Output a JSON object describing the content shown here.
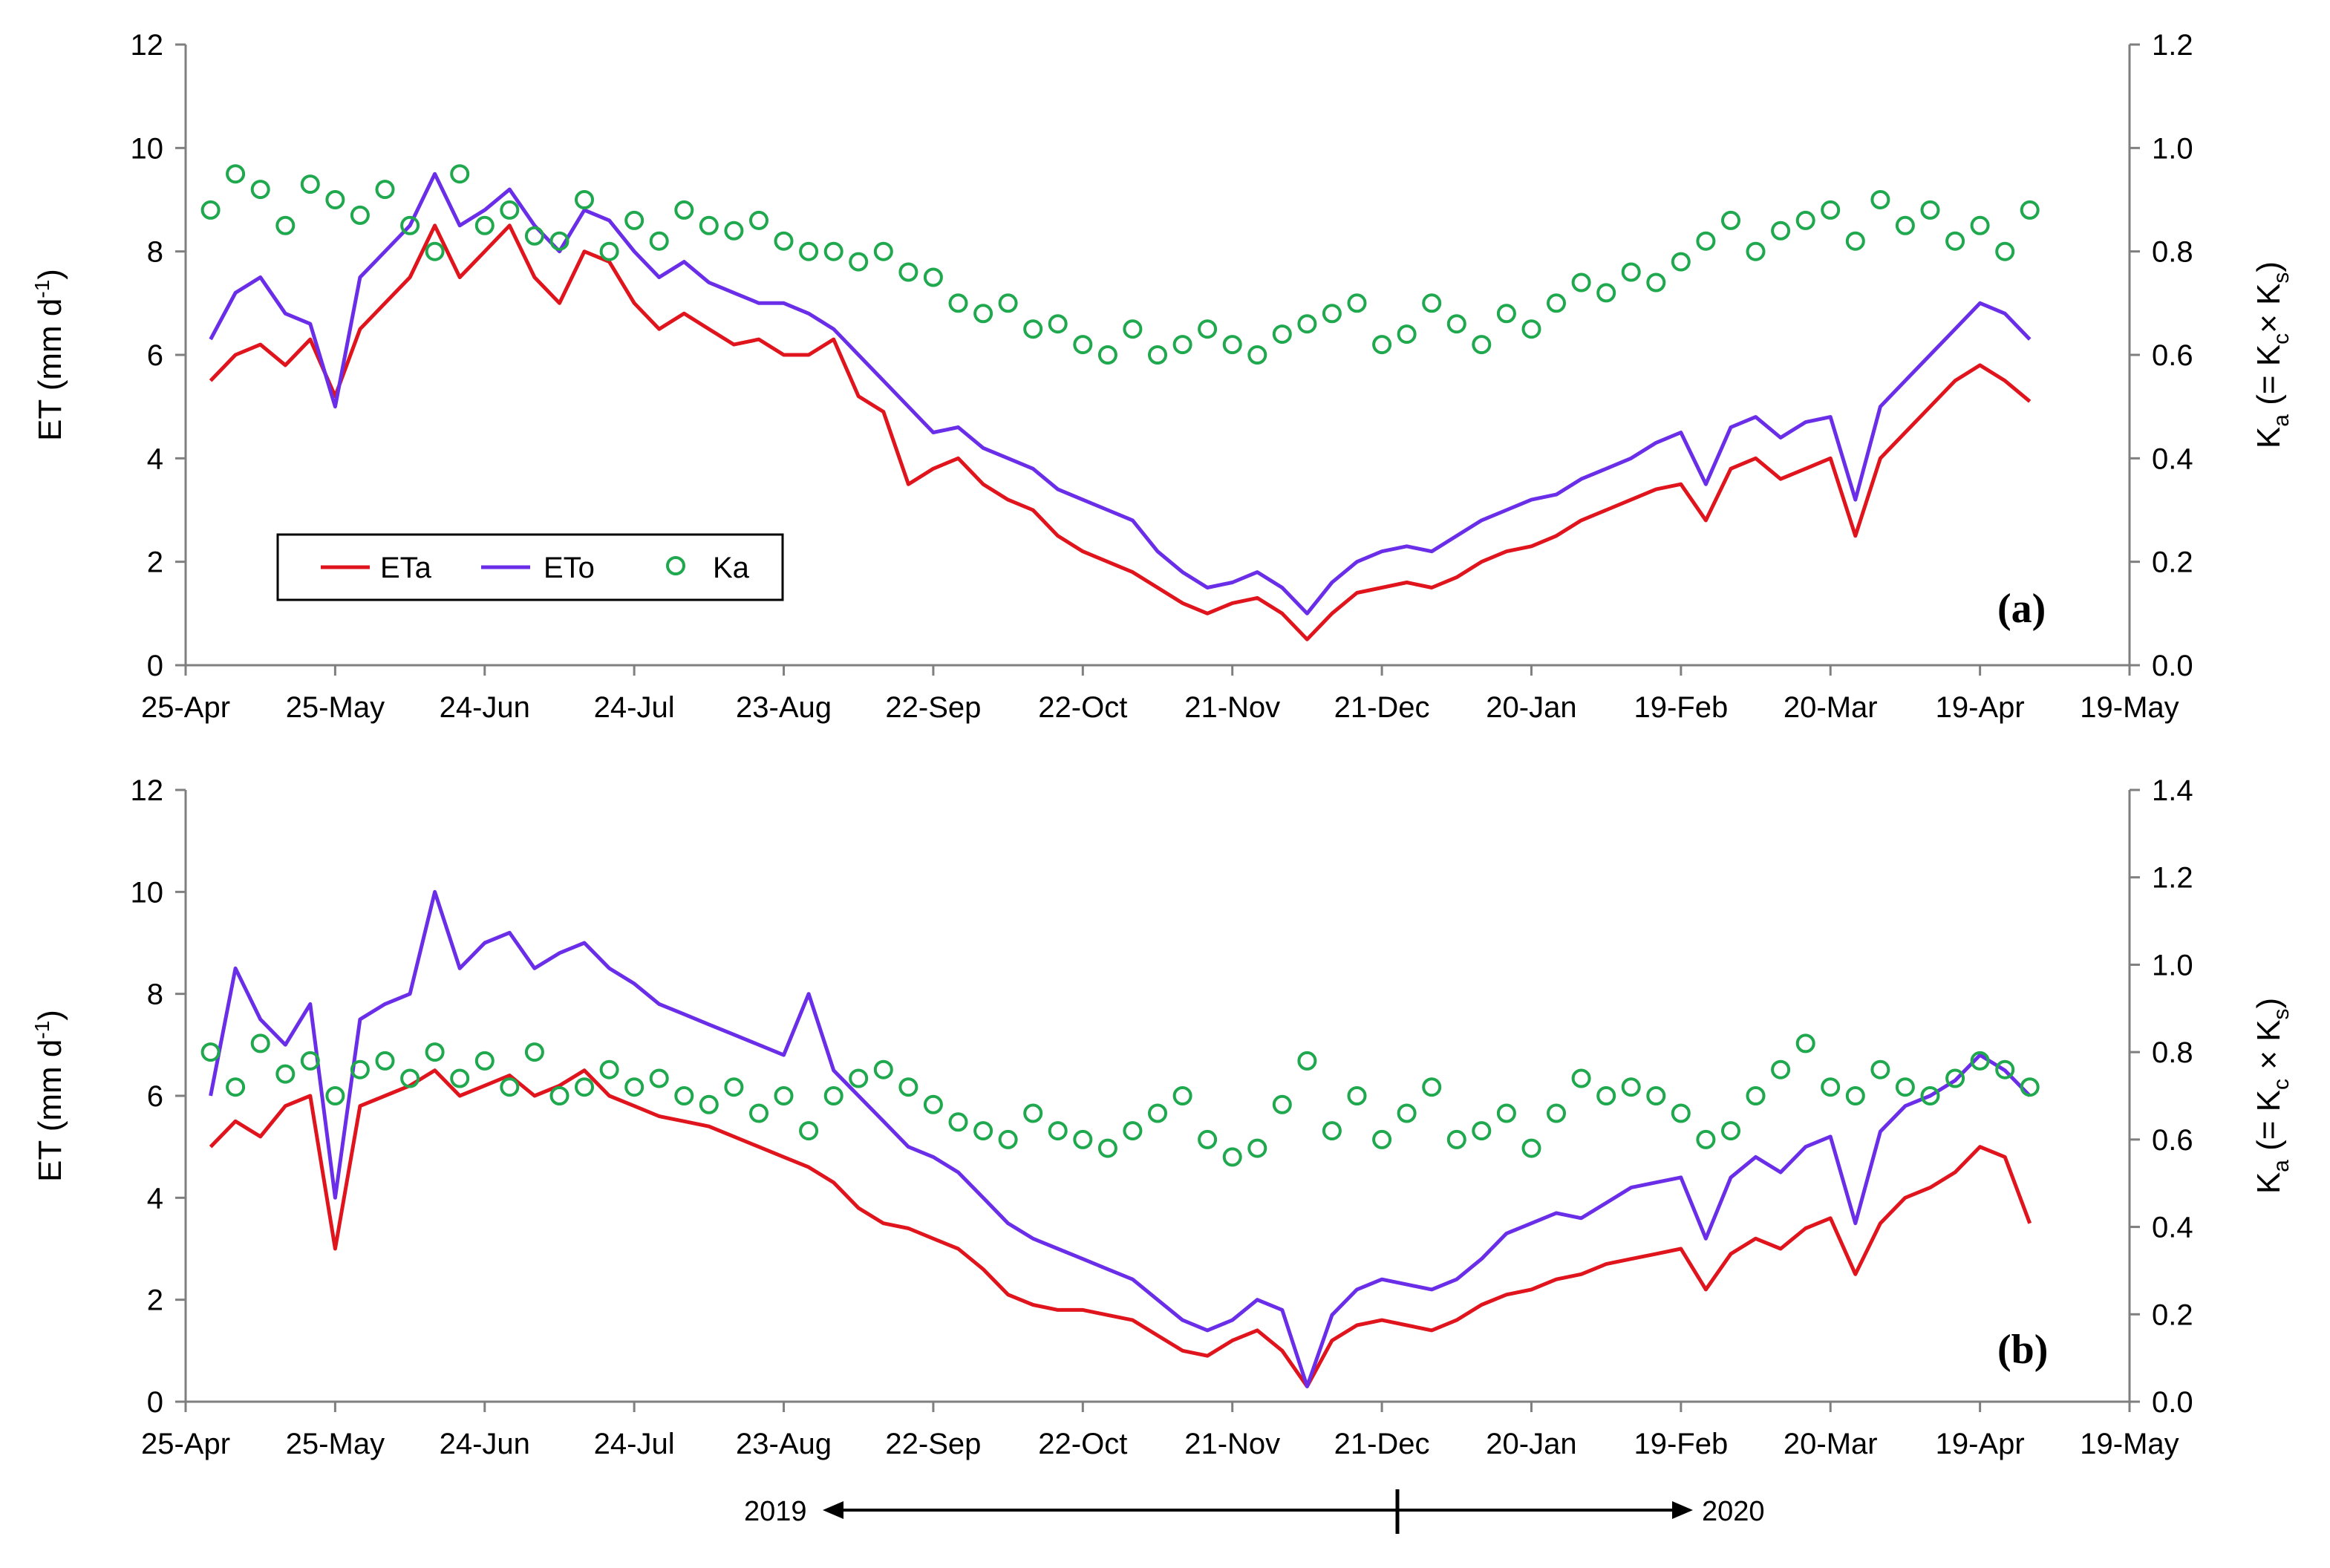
{
  "colors": {
    "eta": "#e0141c",
    "eto": "#6a2ee8",
    "ka": "#1fa84d",
    "axis": "#7f7f7f",
    "text": "#000000"
  },
  "legend": {
    "eta": "ETa",
    "eto": "ETo",
    "ka": "Ka"
  },
  "years": {
    "left": "2019",
    "right": "2020"
  },
  "chart_data": [
    {
      "type": "line",
      "panel_label": "(a)",
      "ylabel": "ET (mm d-1)",
      "ylabel_parts": {
        "main": "ET (mm d",
        "sup": "-1",
        "end": ")"
      },
      "y2label": "Ka (= Kc× Ks)",
      "y2label_parts": {
        "k": "K",
        "a": "a",
        "mid": " (= K",
        "c": "c",
        "x": "× K",
        "s": "s",
        "end": ")"
      },
      "x_tick_labels": [
        "25-Apr",
        "25-May",
        "24-Jun",
        "24-Jul",
        "23-Aug",
        "22-Sep",
        "22-Oct",
        "21-Nov",
        "21-Dec",
        "20-Jan",
        "19-Feb",
        "20-Mar",
        "19-Apr",
        "19-May"
      ],
      "y_tick_labels": [
        "0",
        "2",
        "4",
        "6",
        "8",
        "10",
        "12"
      ],
      "y2_tick_labels": [
        "0.0",
        "0.2",
        "0.4",
        "0.6",
        "0.8",
        "1.0",
        "1.2"
      ],
      "ylim": [
        0,
        12
      ],
      "y2lim": [
        0,
        1.2
      ],
      "xlim_days": [
        0,
        390
      ],
      "series": [
        {
          "name": "ETa",
          "axis": "left",
          "kind": "line",
          "x": [
            5,
            10,
            15,
            20,
            25,
            30,
            35,
            40,
            45,
            50,
            55,
            60,
            65,
            70,
            75,
            80,
            85,
            90,
            95,
            100,
            105,
            110,
            115,
            120,
            125,
            130,
            135,
            140,
            145,
            150,
            155,
            160,
            165,
            170,
            175,
            180,
            185,
            190,
            195,
            200,
            205,
            210,
            215,
            220,
            225,
            230,
            235,
            240,
            245,
            250,
            255,
            260,
            265,
            270,
            275,
            280,
            285,
            290,
            295,
            300,
            305,
            310,
            315,
            320,
            325,
            330,
            335,
            340,
            345,
            350,
            355,
            360,
            365,
            370
          ],
          "values": [
            5.5,
            6.0,
            6.2,
            5.8,
            6.3,
            5.2,
            6.5,
            7.0,
            7.5,
            8.5,
            7.5,
            8.0,
            8.5,
            7.5,
            7.0,
            8.0,
            7.8,
            7.0,
            6.5,
            6.8,
            6.5,
            6.2,
            6.3,
            6.0,
            6.0,
            6.3,
            5.2,
            4.9,
            3.5,
            3.8,
            4.0,
            3.5,
            3.2,
            3.0,
            2.5,
            2.2,
            2.0,
            1.8,
            1.5,
            1.2,
            1.0,
            1.2,
            1.3,
            1.0,
            0.5,
            1.0,
            1.4,
            1.5,
            1.6,
            1.5,
            1.7,
            2.0,
            2.2,
            2.3,
            2.5,
            2.8,
            3.0,
            3.2,
            3.4,
            3.5,
            2.8,
            3.8,
            4.0,
            3.6,
            3.8,
            4.0,
            2.5,
            4.0,
            4.5,
            5.0,
            5.5,
            5.8,
            5.5,
            5.1
          ]
        },
        {
          "name": "ETo",
          "axis": "left",
          "kind": "line",
          "x": [
            5,
            10,
            15,
            20,
            25,
            30,
            35,
            40,
            45,
            50,
            55,
            60,
            65,
            70,
            75,
            80,
            85,
            90,
            95,
            100,
            105,
            110,
            115,
            120,
            125,
            130,
            135,
            140,
            145,
            150,
            155,
            160,
            165,
            170,
            175,
            180,
            185,
            190,
            195,
            200,
            205,
            210,
            215,
            220,
            225,
            230,
            235,
            240,
            245,
            250,
            255,
            260,
            265,
            270,
            275,
            280,
            285,
            290,
            295,
            300,
            305,
            310,
            315,
            320,
            325,
            330,
            335,
            340,
            345,
            350,
            355,
            360,
            365,
            370
          ],
          "values": [
            6.3,
            7.2,
            7.5,
            6.8,
            6.6,
            5.0,
            7.5,
            8.0,
            8.5,
            9.5,
            8.5,
            8.8,
            9.2,
            8.5,
            8.0,
            8.8,
            8.6,
            8.0,
            7.5,
            7.8,
            7.4,
            7.2,
            7.0,
            7.0,
            6.8,
            6.5,
            6.0,
            5.5,
            5.0,
            4.5,
            4.6,
            4.2,
            4.0,
            3.8,
            3.4,
            3.2,
            3.0,
            2.8,
            2.2,
            1.8,
            1.5,
            1.6,
            1.8,
            1.5,
            1.0,
            1.6,
            2.0,
            2.2,
            2.3,
            2.2,
            2.5,
            2.8,
            3.0,
            3.2,
            3.3,
            3.6,
            3.8,
            4.0,
            4.3,
            4.5,
            3.5,
            4.6,
            4.8,
            4.4,
            4.7,
            4.8,
            3.2,
            5.0,
            5.5,
            6.0,
            6.5,
            7.0,
            6.8,
            6.3
          ]
        },
        {
          "name": "Ka",
          "axis": "right",
          "kind": "scatter",
          "x": [
            5,
            10,
            15,
            20,
            25,
            30,
            35,
            40,
            45,
            50,
            55,
            60,
            65,
            70,
            75,
            80,
            85,
            90,
            95,
            100,
            105,
            110,
            115,
            120,
            125,
            130,
            135,
            140,
            145,
            150,
            155,
            160,
            165,
            170,
            175,
            180,
            185,
            190,
            195,
            200,
            205,
            210,
            215,
            220,
            225,
            230,
            235,
            240,
            245,
            250,
            255,
            260,
            265,
            270,
            275,
            280,
            285,
            290,
            295,
            300,
            305,
            310,
            315,
            320,
            325,
            330,
            335,
            340,
            345,
            350,
            355,
            360,
            365,
            370
          ],
          "values": [
            0.88,
            0.95,
            0.92,
            0.85,
            0.93,
            0.9,
            0.87,
            0.92,
            0.85,
            0.8,
            0.95,
            0.85,
            0.88,
            0.83,
            0.82,
            0.9,
            0.8,
            0.86,
            0.82,
            0.88,
            0.85,
            0.84,
            0.86,
            0.82,
            0.8,
            0.8,
            0.78,
            0.8,
            0.76,
            0.75,
            0.7,
            0.68,
            0.7,
            0.65,
            0.66,
            0.62,
            0.6,
            0.65,
            0.6,
            0.62,
            0.65,
            0.62,
            0.6,
            0.64,
            0.66,
            0.68,
            0.7,
            0.62,
            0.64,
            0.7,
            0.66,
            0.62,
            0.68,
            0.65,
            0.7,
            0.74,
            0.72,
            0.76,
            0.74,
            0.78,
            0.82,
            0.86,
            0.8,
            0.84,
            0.86,
            0.88,
            0.82,
            0.9,
            0.85,
            0.88,
            0.82,
            0.85,
            0.8,
            0.88
          ]
        }
      ]
    },
    {
      "type": "line",
      "panel_label": "(b)",
      "ylabel": "ET (mm d-1)",
      "ylabel_parts": {
        "main": "ET (mm d",
        "sup": "-1",
        "end": ")"
      },
      "y2label": "Ka (= Kc × Ks)",
      "y2label_parts": {
        "k": "K",
        "a": "a",
        "mid": " (= K",
        "c": "c",
        "x": " × K",
        "s": "s",
        "end": ")"
      },
      "x_tick_labels": [
        "25-Apr",
        "25-May",
        "24-Jun",
        "24-Jul",
        "23-Aug",
        "22-Sep",
        "22-Oct",
        "21-Nov",
        "21-Dec",
        "20-Jan",
        "19-Feb",
        "20-Mar",
        "19-Apr",
        "19-May"
      ],
      "y_tick_labels": [
        "0",
        "2",
        "4",
        "6",
        "8",
        "10",
        "12"
      ],
      "y2_tick_labels": [
        "0.0",
        "0.2",
        "0.4",
        "0.6",
        "0.8",
        "1.0",
        "1.2",
        "1.4"
      ],
      "ylim": [
        0,
        12
      ],
      "y2lim": [
        0,
        1.4
      ],
      "xlim_days": [
        0,
        390
      ],
      "series": [
        {
          "name": "ETa",
          "axis": "left",
          "kind": "line",
          "x": [
            5,
            10,
            15,
            20,
            25,
            30,
            35,
            40,
            45,
            50,
            55,
            60,
            65,
            70,
            75,
            80,
            85,
            90,
            95,
            100,
            105,
            110,
            115,
            120,
            125,
            130,
            135,
            140,
            145,
            150,
            155,
            160,
            165,
            170,
            175,
            180,
            185,
            190,
            195,
            200,
            205,
            210,
            215,
            220,
            225,
            230,
            235,
            240,
            245,
            250,
            255,
            260,
            265,
            270,
            275,
            280,
            285,
            290,
            295,
            300,
            305,
            310,
            315,
            320,
            325,
            330,
            335,
            340,
            345,
            350,
            355,
            360,
            365,
            370
          ],
          "values": [
            5.0,
            5.5,
            5.2,
            5.8,
            6.0,
            3.0,
            5.8,
            6.0,
            6.2,
            6.5,
            6.0,
            6.2,
            6.4,
            6.0,
            6.2,
            6.5,
            6.0,
            5.8,
            5.6,
            5.5,
            5.4,
            5.2,
            5.0,
            4.8,
            4.6,
            4.3,
            3.8,
            3.5,
            3.4,
            3.2,
            3.0,
            2.6,
            2.1,
            1.9,
            1.8,
            1.8,
            1.7,
            1.6,
            1.3,
            1.0,
            0.9,
            1.2,
            1.4,
            1.0,
            0.3,
            1.2,
            1.5,
            1.6,
            1.5,
            1.4,
            1.6,
            1.9,
            2.1,
            2.2,
            2.4,
            2.5,
            2.7,
            2.8,
            2.9,
            3.0,
            2.2,
            2.9,
            3.2,
            3.0,
            3.4,
            3.6,
            2.5,
            3.5,
            4.0,
            4.2,
            4.5,
            5.0,
            4.8,
            3.5
          ]
        },
        {
          "name": "ETo",
          "axis": "left",
          "kind": "line",
          "x": [
            5,
            10,
            15,
            20,
            25,
            30,
            35,
            40,
            45,
            50,
            55,
            60,
            65,
            70,
            75,
            80,
            85,
            90,
            95,
            100,
            105,
            110,
            115,
            120,
            125,
            130,
            135,
            140,
            145,
            150,
            155,
            160,
            165,
            170,
            175,
            180,
            185,
            190,
            195,
            200,
            205,
            210,
            215,
            220,
            225,
            230,
            235,
            240,
            245,
            250,
            255,
            260,
            265,
            270,
            275,
            280,
            285,
            290,
            295,
            300,
            305,
            310,
            315,
            320,
            325,
            330,
            335,
            340,
            345,
            350,
            355,
            360,
            365,
            370
          ],
          "values": [
            6.0,
            8.5,
            7.5,
            7.0,
            7.8,
            4.0,
            7.5,
            7.8,
            8.0,
            10.0,
            8.5,
            9.0,
            9.2,
            8.5,
            8.8,
            9.0,
            8.5,
            8.2,
            7.8,
            7.6,
            7.4,
            7.2,
            7.0,
            6.8,
            8.0,
            6.5,
            6.0,
            5.5,
            5.0,
            4.8,
            4.5,
            4.0,
            3.5,
            3.2,
            3.0,
            2.8,
            2.6,
            2.4,
            2.0,
            1.6,
            1.4,
            1.6,
            2.0,
            1.8,
            0.3,
            1.7,
            2.2,
            2.4,
            2.3,
            2.2,
            2.4,
            2.8,
            3.3,
            3.5,
            3.7,
            3.6,
            3.9,
            4.2,
            4.3,
            4.4,
            3.2,
            4.4,
            4.8,
            4.5,
            5.0,
            5.2,
            3.5,
            5.3,
            5.8,
            6.0,
            6.3,
            6.8,
            6.5,
            6.0
          ]
        },
        {
          "name": "Ka",
          "axis": "right",
          "kind": "scatter",
          "x": [
            5,
            10,
            15,
            20,
            25,
            30,
            35,
            40,
            45,
            50,
            55,
            60,
            65,
            70,
            75,
            80,
            85,
            90,
            95,
            100,
            105,
            110,
            115,
            120,
            125,
            130,
            135,
            140,
            145,
            150,
            155,
            160,
            165,
            170,
            175,
            180,
            185,
            190,
            195,
            200,
            205,
            210,
            215,
            220,
            225,
            230,
            235,
            240,
            245,
            250,
            255,
            260,
            265,
            270,
            275,
            280,
            285,
            290,
            295,
            300,
            305,
            310,
            315,
            320,
            325,
            330,
            335,
            340,
            345,
            350,
            355,
            360,
            365,
            370
          ],
          "values": [
            0.8,
            0.72,
            0.82,
            0.75,
            0.78,
            0.7,
            0.76,
            0.78,
            0.74,
            0.8,
            0.74,
            0.78,
            0.72,
            0.8,
            0.7,
            0.72,
            0.76,
            0.72,
            0.74,
            0.7,
            0.68,
            0.72,
            0.66,
            0.7,
            0.62,
            0.7,
            0.74,
            0.76,
            0.72,
            0.68,
            0.64,
            0.62,
            0.6,
            0.66,
            0.62,
            0.6,
            0.58,
            0.62,
            0.66,
            0.7,
            0.6,
            0.56,
            0.58,
            0.68,
            0.78,
            0.62,
            0.7,
            0.6,
            0.66,
            0.72,
            0.6,
            0.62,
            0.66,
            0.58,
            0.66,
            0.74,
            0.7,
            0.72,
            0.7,
            0.66,
            0.6,
            0.62,
            0.7,
            0.76,
            0.82,
            0.72,
            0.7,
            0.76,
            0.72,
            0.7,
            0.74,
            0.78,
            0.76,
            0.72
          ]
        }
      ]
    }
  ]
}
